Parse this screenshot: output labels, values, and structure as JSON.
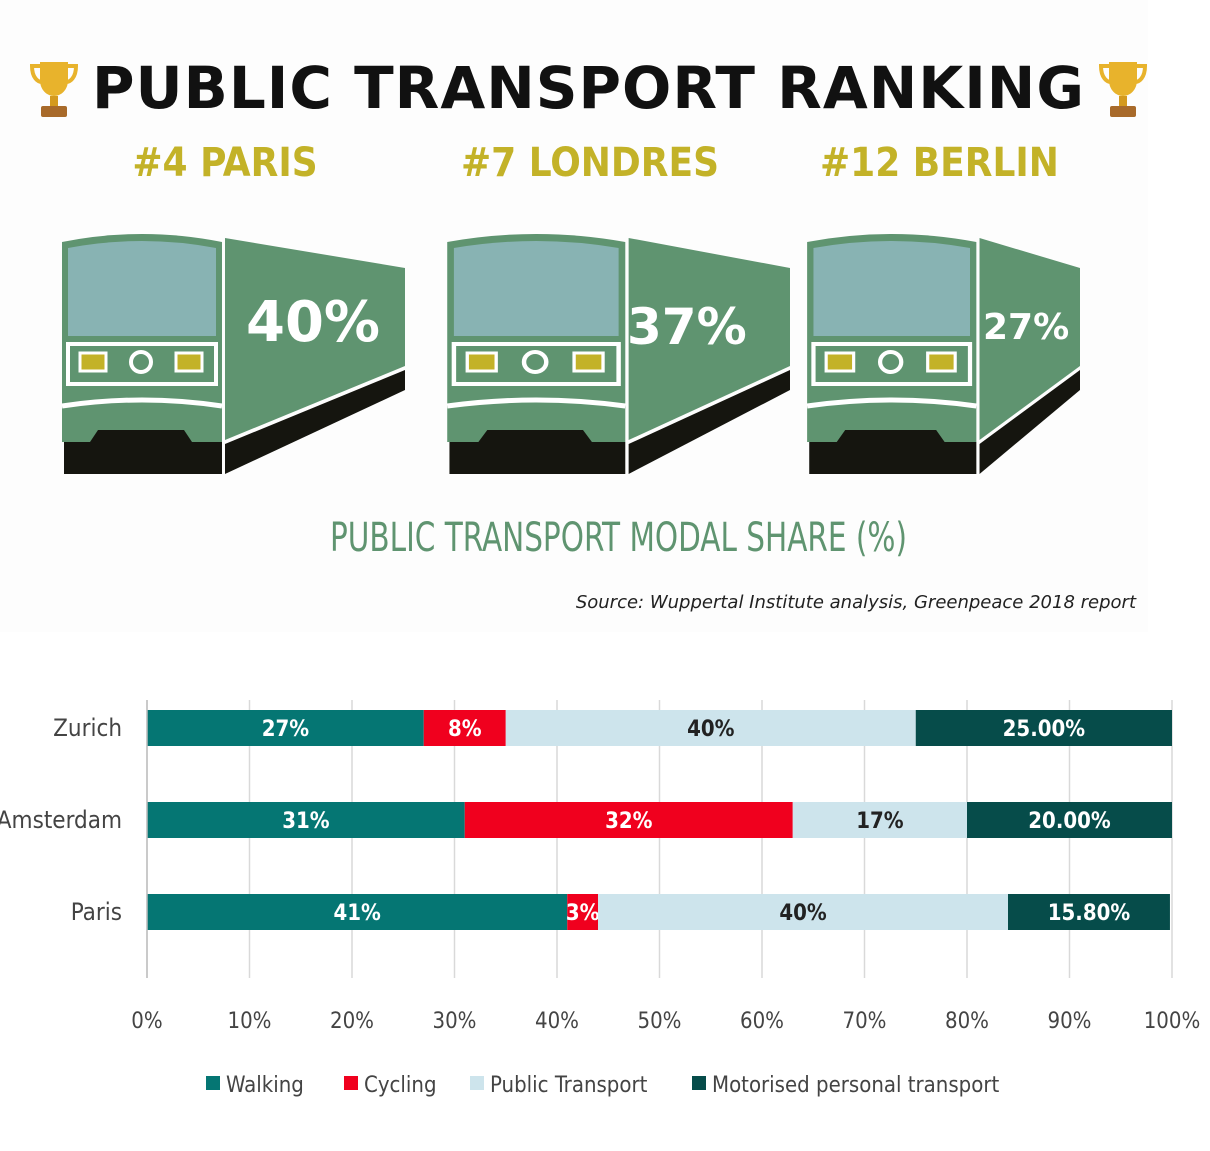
{
  "infographic": {
    "title": "PUBLIC TRANSPORT RANKING",
    "trophy_icon": "trophy-icon",
    "cities": [
      {
        "rank_label": "#4 PARIS",
        "share_label": "40%",
        "share": 40
      },
      {
        "rank_label": "#7 LONDRES",
        "share_label": "37%",
        "share": 37
      },
      {
        "rank_label": "#12 BERLIN",
        "share_label": "27%",
        "share": 27
      }
    ],
    "caption": "PUBLIC TRANSPORT MODAL SHARE (%)",
    "source": "Source: Wuppertal Institute analysis, Greenpeace 2018 report",
    "colors": {
      "title_gold": "#c3b228",
      "train_green": "#5f9470",
      "train_window": "#88b3b3",
      "train_black": "#15150f"
    }
  },
  "chart_data": {
    "type": "bar",
    "orientation": "horizontal",
    "stacked": true,
    "categories": [
      "Zurich",
      "Amsterdam",
      "Paris"
    ],
    "series": [
      {
        "name": "Walking",
        "color": "#057673",
        "values": [
          27,
          31,
          41
        ],
        "labels": [
          "27%",
          "31%",
          "41%"
        ]
      },
      {
        "name": "Cycling",
        "color": "#f0001e",
        "values": [
          8,
          32,
          3
        ],
        "labels": [
          "8%",
          "32%",
          "3%"
        ]
      },
      {
        "name": "Public Transport",
        "color": "#cde4ec",
        "values": [
          40,
          17,
          40
        ],
        "labels": [
          "40%",
          "17%",
          "40%"
        ]
      },
      {
        "name": "Motorised personal transport",
        "color": "#064c4a",
        "values": [
          25,
          20,
          15.8
        ],
        "labels": [
          "25.00%",
          "20.00%",
          "15.80%"
        ]
      }
    ],
    "xlim": [
      0,
      100
    ],
    "xticks": [
      "0%",
      "10%",
      "20%",
      "30%",
      "40%",
      "50%",
      "60%",
      "70%",
      "80%",
      "90%",
      "100%"
    ],
    "grid": true,
    "legend": "bottom"
  }
}
